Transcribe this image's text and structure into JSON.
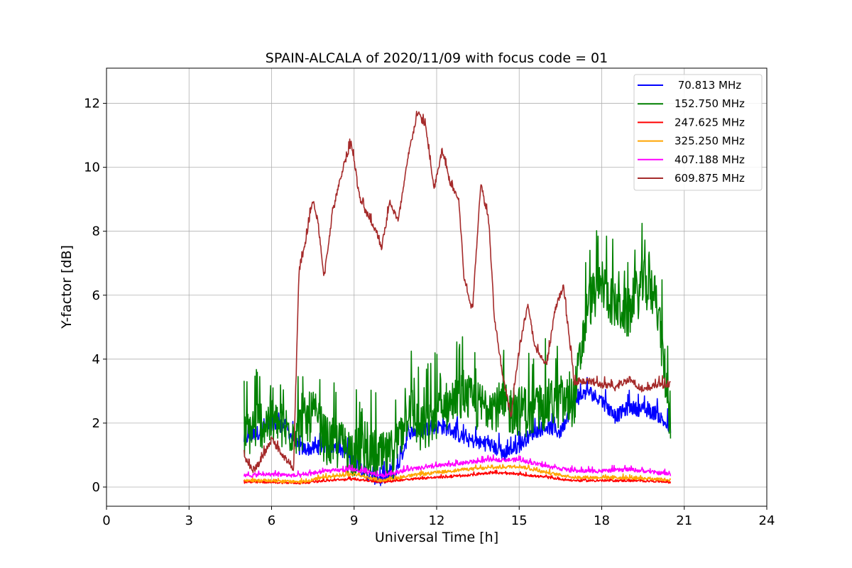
{
  "chart_data": {
    "type": "line",
    "title": "SPAIN-ALCALA of 2020/11/09 with focus code = 01",
    "xlabel": "Universal Time [h]",
    "ylabel": "Y-factor [dB]",
    "xlim": [
      0,
      24
    ],
    "ylim": [
      -0.6,
      13.1
    ],
    "xticks": [
      0,
      3,
      6,
      9,
      12,
      15,
      18,
      21,
      24
    ],
    "yticks": [
      0,
      2,
      4,
      6,
      8,
      10,
      12
    ],
    "xtick_labels": [
      "0",
      "3",
      "6",
      "9",
      "12",
      "15",
      "18",
      "21",
      "24"
    ],
    "ytick_labels": [
      "0",
      "2",
      "4",
      "6",
      "8",
      "10",
      "12"
    ],
    "grid": true,
    "legend_position": "top-right",
    "series": [
      {
        "name": " 70.813 MHz",
        "color": "#0000ff",
        "noise": 0.45,
        "x": [
          5.0,
          5.5,
          6.0,
          6.5,
          7.0,
          7.5,
          8.0,
          8.5,
          9.0,
          9.5,
          10.0,
          10.5,
          11.0,
          11.5,
          12.0,
          12.5,
          13.0,
          13.5,
          14.0,
          14.5,
          15.0,
          15.5,
          16.0,
          16.5,
          17.0,
          17.5,
          18.0,
          18.5,
          19.0,
          19.5,
          20.0,
          20.5
        ],
        "y": [
          1.5,
          1.7,
          2.0,
          1.9,
          1.2,
          1.2,
          1.3,
          1.2,
          0.8,
          0.4,
          0.2,
          0.4,
          1.7,
          1.8,
          1.9,
          1.8,
          1.5,
          1.4,
          1.3,
          1.0,
          1.3,
          1.7,
          1.9,
          1.7,
          2.7,
          3.0,
          2.7,
          2.2,
          2.5,
          2.4,
          2.3,
          1.8
        ]
      },
      {
        "name": "152.750 MHz",
        "color": "#008000",
        "noise": 1.6,
        "x": [
          5.0,
          5.5,
          6.0,
          6.5,
          7.0,
          7.5,
          8.0,
          8.5,
          9.0,
          9.5,
          10.0,
          10.5,
          11.0,
          11.5,
          12.0,
          12.5,
          13.0,
          13.5,
          14.0,
          14.5,
          15.0,
          15.5,
          16.0,
          16.5,
          17.0,
          17.5,
          18.0,
          18.5,
          19.0,
          19.5,
          20.0,
          20.5
        ],
        "y": [
          1.6,
          2.0,
          2.0,
          1.8,
          1.8,
          2.3,
          1.4,
          1.3,
          1.1,
          1.0,
          0.9,
          1.0,
          2.6,
          1.6,
          2.3,
          2.6,
          2.8,
          2.5,
          2.6,
          2.4,
          2.4,
          2.3,
          2.6,
          2.6,
          2.7,
          5.7,
          6.4,
          5.6,
          5.4,
          6.4,
          5.9,
          2.0
        ]
      },
      {
        "name": "247.625 MHz",
        "color": "#ff0000",
        "noise": 0.07,
        "x": [
          5.0,
          6.0,
          7.0,
          8.0,
          9.0,
          10.0,
          11.0,
          12.0,
          13.0,
          14.0,
          15.0,
          16.0,
          17.0,
          18.0,
          19.0,
          20.0,
          20.5
        ],
        "y": [
          0.15,
          0.15,
          0.12,
          0.2,
          0.25,
          0.15,
          0.25,
          0.3,
          0.35,
          0.45,
          0.4,
          0.3,
          0.2,
          0.2,
          0.2,
          0.18,
          0.15
        ]
      },
      {
        "name": "325.250 MHz",
        "color": "#ffa500",
        "noise": 0.1,
        "x": [
          5.0,
          6.0,
          7.0,
          8.0,
          9.0,
          10.0,
          11.0,
          12.0,
          13.0,
          14.0,
          15.0,
          16.0,
          17.0,
          18.0,
          19.0,
          20.0,
          20.5
        ],
        "y": [
          0.2,
          0.2,
          0.15,
          0.3,
          0.4,
          0.2,
          0.35,
          0.45,
          0.55,
          0.6,
          0.65,
          0.45,
          0.3,
          0.3,
          0.28,
          0.25,
          0.22
        ]
      },
      {
        "name": "407.188 MHz",
        "color": "#ff00ff",
        "noise": 0.12,
        "x": [
          5.0,
          6.0,
          7.0,
          8.0,
          9.0,
          10.0,
          11.0,
          12.0,
          13.0,
          14.0,
          15.0,
          16.0,
          17.0,
          18.0,
          19.0,
          20.0,
          20.5
        ],
        "y": [
          0.35,
          0.4,
          0.35,
          0.5,
          0.55,
          0.35,
          0.55,
          0.65,
          0.75,
          0.85,
          0.85,
          0.65,
          0.5,
          0.5,
          0.55,
          0.45,
          0.4
        ]
      },
      {
        "name": "609.875 MHz",
        "color": "#a52a2a",
        "noise": 0.22,
        "x": [
          5.0,
          5.3,
          5.6,
          6.0,
          6.4,
          6.8,
          7.0,
          7.2,
          7.5,
          7.7,
          7.9,
          8.2,
          8.6,
          8.9,
          9.2,
          9.5,
          9.8,
          10.0,
          10.3,
          10.6,
          11.0,
          11.3,
          11.6,
          11.9,
          12.2,
          12.5,
          12.8,
          13.0,
          13.3,
          13.6,
          13.9,
          14.1,
          14.4,
          14.7,
          15.0,
          15.3,
          15.6,
          16.0,
          16.3,
          16.6,
          17.0,
          17.5,
          18.0,
          18.5,
          19.0,
          19.5,
          20.0,
          20.5
        ],
        "y": [
          1.0,
          0.5,
          0.8,
          1.5,
          1.0,
          0.6,
          6.8,
          7.5,
          9.0,
          8.2,
          6.5,
          8.5,
          10.0,
          10.8,
          9.0,
          8.5,
          8.0,
          7.5,
          8.9,
          8.3,
          10.5,
          11.7,
          11.3,
          9.3,
          10.5,
          9.5,
          9.0,
          6.5,
          5.5,
          9.5,
          8.3,
          5.3,
          3.5,
          2.2,
          4.3,
          5.7,
          4.3,
          3.8,
          5.5,
          6.3,
          3.3,
          3.3,
          3.2,
          3.1,
          3.4,
          3.0,
          3.2,
          3.2
        ]
      }
    ]
  }
}
